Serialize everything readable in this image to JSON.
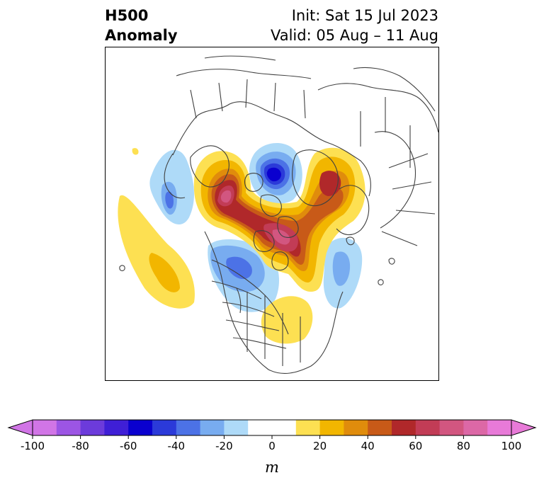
{
  "title": {
    "left_line1": "H500",
    "left_line2": "Anomaly",
    "right_line1": "Init: Sat 15 Jul 2023",
    "right_line2": "Valid: 05 Aug – 11 Aug"
  },
  "map": {
    "projection": "north polar stereographic",
    "field": "500 hPa geopotential height anomaly",
    "anomaly_centers": [
      {
        "name": "ridge-alaska-yukon",
        "sign": "positive",
        "peak": 80
      },
      {
        "name": "ridge-greenland-baffin",
        "sign": "positive",
        "peak": 70
      },
      {
        "name": "ridge-siberia-arctic",
        "sign": "positive",
        "peak": 50
      },
      {
        "name": "ridge-northeast-pacific",
        "sign": "positive",
        "peak": 30
      },
      {
        "name": "ridge-eastern-us",
        "sign": "positive",
        "peak": 20
      },
      {
        "name": "trough-central-arctic",
        "sign": "negative",
        "peak": -60
      },
      {
        "name": "trough-western-canada",
        "sign": "negative",
        "peak": -40
      },
      {
        "name": "trough-north-atlantic",
        "sign": "negative",
        "peak": -30
      },
      {
        "name": "trough-north-pacific",
        "sign": "negative",
        "peak": -40
      }
    ]
  },
  "colorbar": {
    "unit": "m",
    "ticks": [
      "-100",
      "-80",
      "-60",
      "-40",
      "-20",
      "0",
      "20",
      "40",
      "60",
      "80",
      "100"
    ],
    "bounds": [
      -100,
      100
    ],
    "step": 10,
    "extend": "both",
    "colors": [
      "#d175e6",
      "#9c55e4",
      "#6c3bdb",
      "#3f1fd6",
      "#0a00cf",
      "#2b3ad9",
      "#4c72e6",
      "#78acf0",
      "#aedaf8",
      "#ffffff",
      "#ffffff",
      "#fde052",
      "#f2b600",
      "#e08c0c",
      "#c85a18",
      "#b0282a",
      "#c23c56",
      "#d25680",
      "#dc68a6",
      "#e87ad8"
    ],
    "end_colors": {
      "min": "#d175e6",
      "max": "#e87ad8"
    }
  }
}
